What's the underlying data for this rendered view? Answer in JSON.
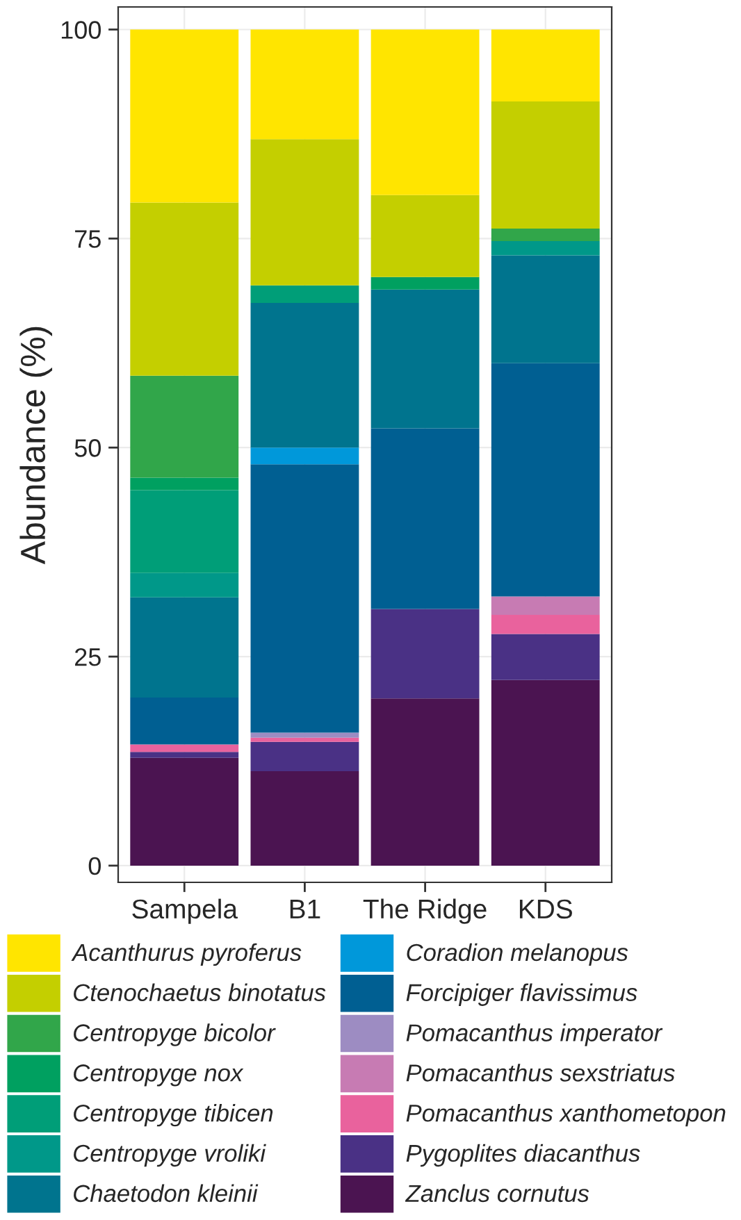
{
  "chart_data": {
    "type": "bar",
    "stacked": true,
    "ylabel": "Abundance (%)",
    "categories": [
      "Sampela",
      "B1",
      "The Ridge",
      "KDS"
    ],
    "ylim": [
      -2,
      102.7
    ],
    "yticks": [
      0,
      25,
      50,
      75,
      100
    ],
    "grid": true,
    "legend": "bottom",
    "series": [
      {
        "name": "Zanclus cornutus",
        "color": "#4b1451",
        "values": [
          12.9,
          11.3,
          20.0,
          22.2
        ]
      },
      {
        "name": "Pygoplites diacanthus",
        "color": "#4a3185",
        "values": [
          0.7,
          3.5,
          10.7,
          5.5
        ]
      },
      {
        "name": "Pomacanthus xanthometopon",
        "color": "#e9629d",
        "values": [
          0.9,
          0.5,
          0,
          2.3
        ]
      },
      {
        "name": "Pomacanthus sexstriatus",
        "color": "#c77bb3",
        "values": [
          0,
          0,
          0,
          2.2
        ]
      },
      {
        "name": "Pomacanthus imperator",
        "color": "#9d8cc2",
        "values": [
          0,
          0.6,
          0,
          0
        ]
      },
      {
        "name": "Forcipiger flavissimus",
        "color": "#005f92",
        "values": [
          5.6,
          32.1,
          21.6,
          27.9
        ]
      },
      {
        "name": "Coradion melanopus",
        "color": "#0098da",
        "values": [
          0,
          2.0,
          0,
          0
        ]
      },
      {
        "name": "Chaetodon kleinii",
        "color": "#00748e",
        "values": [
          12.0,
          17.3,
          16.6,
          12.9
        ]
      },
      {
        "name": "Centropyge vroliki",
        "color": "#009889",
        "values": [
          2.9,
          0,
          0,
          1.7
        ]
      },
      {
        "name": "Centropyge tibicen",
        "color": "#009e78",
        "values": [
          9.9,
          2.1,
          0,
          0
        ]
      },
      {
        "name": "Centropyge nox",
        "color": "#00a060",
        "values": [
          1.5,
          0,
          1.5,
          0
        ]
      },
      {
        "name": "Centropyge bicolor",
        "color": "#31a64a",
        "values": [
          12.2,
          0,
          0,
          1.5
        ]
      },
      {
        "name": "Ctenochaetus binotatus",
        "color": "#c4cf00",
        "values": [
          20.7,
          17.5,
          9.8,
          15.2
        ]
      },
      {
        "name": "Acanthurus pyroferus",
        "color": "#ffe500",
        "values": [
          20.7,
          13.1,
          19.8,
          8.6
        ]
      }
    ]
  }
}
